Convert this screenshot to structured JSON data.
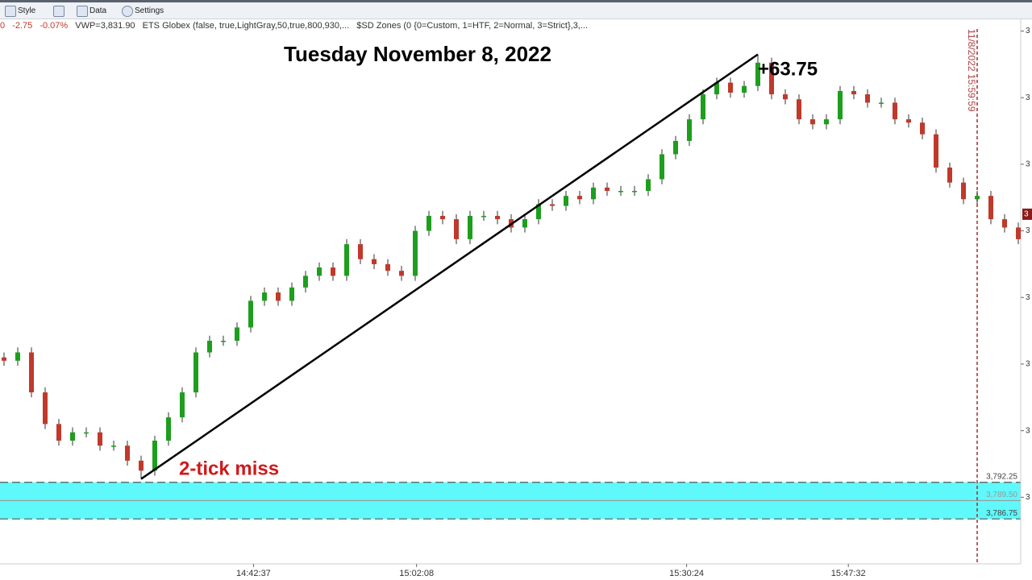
{
  "toolbar": {
    "style": "Style",
    "data": "Data",
    "settings": "Settings"
  },
  "status": [
    "0",
    "-2.75",
    "-0.07%",
    "VWP=3,831.90",
    "ETS Globex (false,  true,LightGray,50,true,800,930,...",
    "$SD Zones (0  {0=Custom, 1=HTF, 2=Normal, 3=Strict},3,..."
  ],
  "chart_data": {
    "type": "candlestick",
    "title": "Tuesday November 8, 2022",
    "annotations": {
      "gain": "+63.75",
      "miss": "2-tick miss"
    },
    "up_color": "#1e9e1e",
    "down_color": "#c0392b",
    "ylim": [
      3780,
      3862
    ],
    "yticks": [
      {
        "value": 3790,
        "label": "3"
      },
      {
        "value": 3800,
        "label": "3"
      },
      {
        "value": 3810,
        "label": "3"
      },
      {
        "value": 3820,
        "label": "3"
      },
      {
        "value": 3830,
        "label": "3"
      },
      {
        "value": 3840,
        "label": "3"
      },
      {
        "value": 3850,
        "label": "3"
      },
      {
        "value": 3860,
        "label": "3"
      }
    ],
    "xticks": [
      {
        "value": 18.2,
        "label": "14:42:37"
      },
      {
        "value": 30.1,
        "label": "15:02:08"
      },
      {
        "value": 49.8,
        "label": "15:30:24"
      },
      {
        "value": 61.6,
        "label": "15:47:32"
      }
    ],
    "session_end": {
      "x": 71,
      "label": "11/8/2022 15:59:59"
    },
    "last_price": {
      "value": 3832.5,
      "label": "3"
    },
    "zone": {
      "top": {
        "value": 3792.25,
        "label": "3,792.25"
      },
      "mid": {
        "value": 3789.5,
        "label": "3,789.50"
      },
      "bottom": {
        "value": 3786.75,
        "label": "3,786.75"
      },
      "color": "#5ff8fb"
    },
    "candles": [
      [
        3811,
        3811.75,
        3809.75,
        3810.5
      ],
      [
        3810.5,
        3812.5,
        3809.75,
        3811.75
      ],
      [
        3811.75,
        3812.5,
        3805,
        3805.75
      ],
      [
        3805.75,
        3806.5,
        3800.25,
        3801
      ],
      [
        3801,
        3801.75,
        3797.75,
        3798.5
      ],
      [
        3798.5,
        3800.5,
        3797.75,
        3799.75
      ],
      [
        3799.75,
        3800.5,
        3799,
        3799.75
      ],
      [
        3799.75,
        3800.5,
        3797,
        3797.75
      ],
      [
        3797.75,
        3798.5,
        3797,
        3797.75
      ],
      [
        3797.75,
        3798.5,
        3794.75,
        3795.5
      ],
      [
        3795.5,
        3796.25,
        3792.75,
        3794
      ],
      [
        3794,
        3799.25,
        3793.25,
        3798.5
      ],
      [
        3798.5,
        3802.75,
        3797.75,
        3802
      ],
      [
        3802,
        3806.5,
        3801.25,
        3805.75
      ],
      [
        3805.75,
        3812.5,
        3805,
        3811.75
      ],
      [
        3811.75,
        3814.25,
        3811,
        3813.5
      ],
      [
        3813.5,
        3814.25,
        3812.75,
        3813.5
      ],
      [
        3813.5,
        3816.25,
        3812.75,
        3815.5
      ],
      [
        3815.5,
        3820.25,
        3814.75,
        3819.5
      ],
      [
        3819.5,
        3821.5,
        3818.75,
        3820.75
      ],
      [
        3820.75,
        3821.5,
        3818.75,
        3819.5
      ],
      [
        3819.5,
        3822.25,
        3818.75,
        3821.5
      ],
      [
        3821.5,
        3824,
        3820.75,
        3823.25
      ],
      [
        3823.25,
        3825.25,
        3822.5,
        3824.5
      ],
      [
        3824.5,
        3825.25,
        3822.5,
        3823.25
      ],
      [
        3823.25,
        3828.75,
        3822.5,
        3828
      ],
      [
        3828,
        3828.75,
        3825,
        3825.75
      ],
      [
        3825.75,
        3826.5,
        3824.25,
        3825
      ],
      [
        3825,
        3825.75,
        3823.25,
        3824
      ],
      [
        3824,
        3824.75,
        3822.5,
        3823.25
      ],
      [
        3823.25,
        3830.75,
        3822.5,
        3830
      ],
      [
        3830,
        3833,
        3829.25,
        3832.25
      ],
      [
        3832.25,
        3833,
        3831,
        3831.75
      ],
      [
        3831.75,
        3832.5,
        3828,
        3828.75
      ],
      [
        3828.75,
        3833,
        3828,
        3832.25
      ],
      [
        3832.25,
        3833,
        3831.5,
        3832.25
      ],
      [
        3832.25,
        3833,
        3831,
        3831.75
      ],
      [
        3831.75,
        3832.5,
        3829.75,
        3830.5
      ],
      [
        3830.5,
        3832.5,
        3829.75,
        3831.75
      ],
      [
        3831.75,
        3834.75,
        3831,
        3834
      ],
      [
        3834,
        3834.75,
        3833,
        3833.75
      ],
      [
        3833.75,
        3836,
        3833,
        3835.25
      ],
      [
        3835.25,
        3836,
        3834,
        3834.75
      ],
      [
        3834.75,
        3837.25,
        3834,
        3836.5
      ],
      [
        3836.5,
        3837.25,
        3835.25,
        3836
      ],
      [
        3836,
        3836.75,
        3835.25,
        3836
      ],
      [
        3836,
        3836.75,
        3835.25,
        3836
      ],
      [
        3836,
        3838.5,
        3835.25,
        3837.75
      ],
      [
        3837.75,
        3842.25,
        3837,
        3841.5
      ],
      [
        3841.5,
        3844.25,
        3840.75,
        3843.5
      ],
      [
        3843.5,
        3847.5,
        3842.75,
        3846.75
      ],
      [
        3846.75,
        3851.25,
        3846,
        3850.5
      ],
      [
        3850.5,
        3853,
        3849.75,
        3852.25
      ],
      [
        3852.25,
        3853,
        3850,
        3850.75
      ],
      [
        3850.75,
        3852.5,
        3850,
        3851.75
      ],
      [
        3851.75,
        3856.5,
        3851,
        3855.25
      ],
      [
        3855.25,
        3856,
        3849.75,
        3850.5
      ],
      [
        3850.5,
        3851.25,
        3849,
        3849.75
      ],
      [
        3849.75,
        3850.5,
        3846,
        3846.75
      ],
      [
        3846.75,
        3847.5,
        3845.25,
        3846
      ],
      [
        3846,
        3847.5,
        3845.25,
        3846.75
      ],
      [
        3846.75,
        3851.75,
        3846,
        3851
      ],
      [
        3851,
        3851.75,
        3849.75,
        3850.5
      ],
      [
        3850.5,
        3851.25,
        3848.5,
        3849.25
      ],
      [
        3849.25,
        3850,
        3848.5,
        3849.25
      ],
      [
        3849.25,
        3850,
        3846,
        3846.75
      ],
      [
        3846.75,
        3847.5,
        3845.5,
        3846.25
      ],
      [
        3846.25,
        3847,
        3843.75,
        3844.5
      ],
      [
        3844.5,
        3845.25,
        3838.75,
        3839.5
      ],
      [
        3839.5,
        3840.25,
        3836.5,
        3837.25
      ],
      [
        3837.25,
        3838,
        3834,
        3834.75
      ],
      [
        3834.75,
        3836,
        3834,
        3835.25
      ],
      [
        3835.25,
        3836,
        3831,
        3831.75
      ],
      [
        3831.75,
        3832.5,
        3829.75,
        3830.5
      ],
      [
        3830.5,
        3831.25,
        3828,
        3828.75
      ]
    ]
  }
}
